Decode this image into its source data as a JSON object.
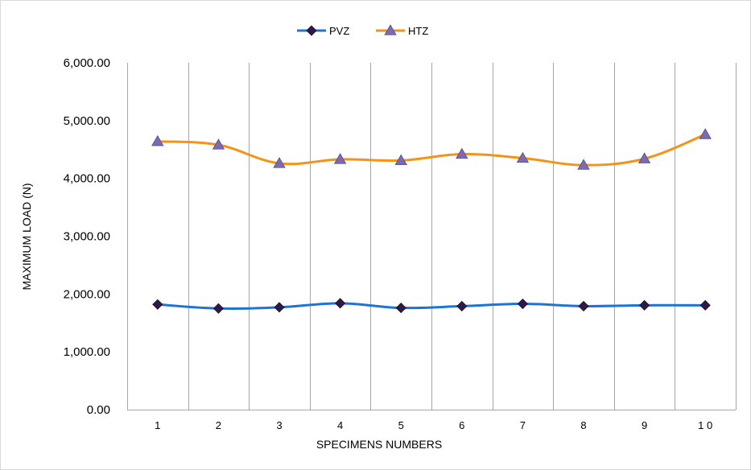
{
  "chart_data": {
    "type": "line",
    "categories": [
      "1",
      "2",
      "3",
      "4",
      "5",
      "6",
      "7",
      "8",
      "9",
      "1 0"
    ],
    "series": [
      {
        "name": "PVZ",
        "values": [
          1820,
          1750,
          1770,
          1840,
          1760,
          1790,
          1830,
          1790,
          1805,
          1805
        ],
        "color": "#1f73d2",
        "marker": "diamond",
        "marker_color": "#2e1a47"
      },
      {
        "name": "HTZ",
        "values": [
          4640,
          4580,
          4260,
          4330,
          4310,
          4420,
          4350,
          4230,
          4340,
          4760
        ],
        "color": "#f39317",
        "marker": "triangle",
        "marker_color": "#7b6bb0"
      }
    ],
    "y_tick_labels": [
      "0.00",
      "1,000.00",
      "2,000.00",
      "3,000.00",
      "4,000.00",
      "5,000.00",
      "6,000.00"
    ],
    "ylim": [
      0,
      6000
    ],
    "xlabel": "SPECIMENS NUMBERS",
    "ylabel": "MAXIMUM LOAD (N)",
    "legend_position": "top-center",
    "grid": "vertical",
    "grid_color": "#a6a6a6"
  }
}
